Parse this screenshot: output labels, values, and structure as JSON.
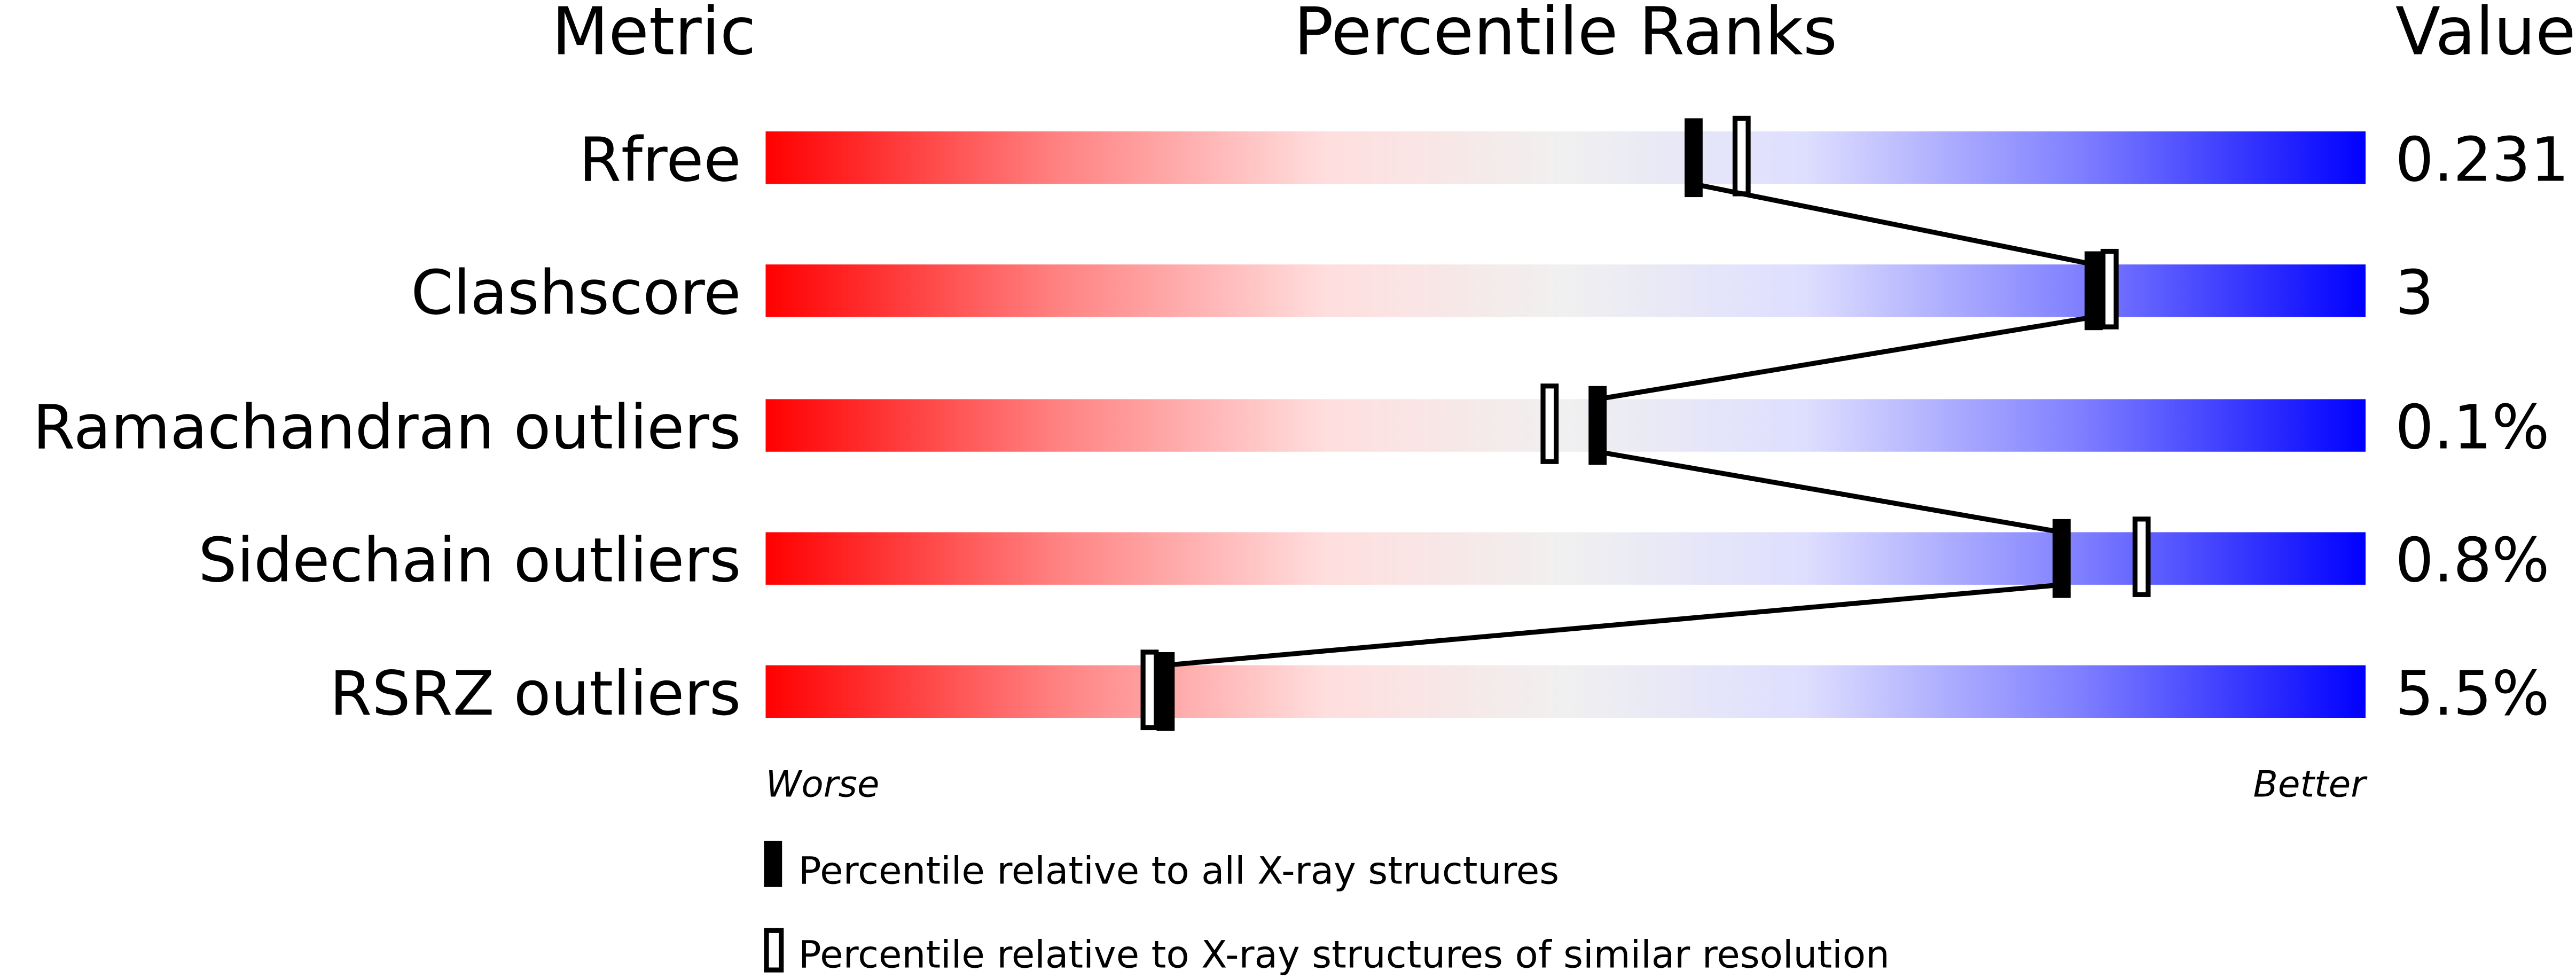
{
  "chart_data": {
    "type": "percentile-bar",
    "headers": {
      "metric": "Metric",
      "ranks": "Percentile Ranks",
      "value": "Value"
    },
    "axis": {
      "min": 0,
      "max": 100,
      "left_label": "Worse",
      "right_label": "Better"
    },
    "colors": {
      "worse": "#ff0000",
      "middle": "#f0f0f0",
      "better": "#0000ff",
      "marker": "#000000"
    },
    "rows": [
      {
        "metric": "Rfree",
        "value": "0.231",
        "percentile_all": 58,
        "percentile_similar": 61
      },
      {
        "metric": "Clashscore",
        "value": "3",
        "percentile_all": 83,
        "percentile_similar": 84
      },
      {
        "metric": "Ramachandran outliers",
        "value": "0.1%",
        "percentile_all": 52,
        "percentile_similar": 49
      },
      {
        "metric": "Sidechain outliers",
        "value": "0.8%",
        "percentile_all": 81,
        "percentile_similar": 86
      },
      {
        "metric": "RSRZ outliers",
        "value": "5.5%",
        "percentile_all": 25,
        "percentile_similar": 24
      }
    ],
    "legend": [
      {
        "marker": "filled",
        "label": "Percentile relative to all X-ray structures"
      },
      {
        "marker": "open",
        "label": "Percentile relative to X-ray structures of similar resolution"
      }
    ]
  }
}
